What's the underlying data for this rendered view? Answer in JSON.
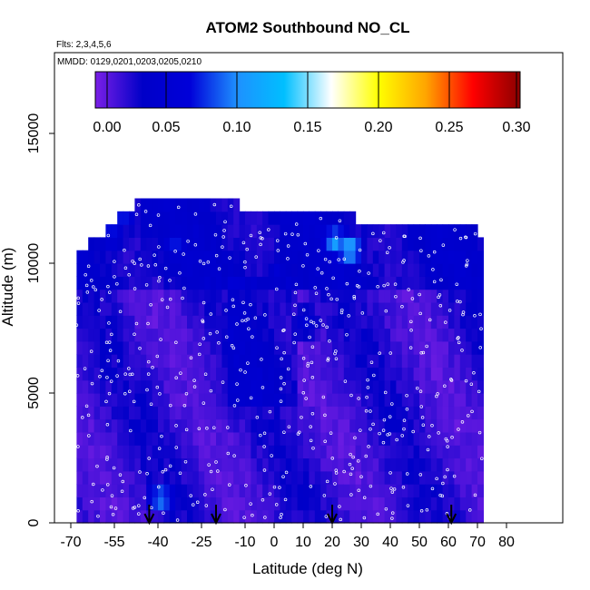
{
  "chart_data": {
    "type": "heatmap",
    "title": "ATOM2 Southbound NO_CL",
    "flights_label": "Flts: 2,3,4,5,6",
    "dates_label": "MMDD: 0129,0201,0203,0205,0210",
    "xlabel": "Latitude (deg N)",
    "ylabel": "Altitude (m)",
    "xlim": [
      -70,
      85
    ],
    "ylim": [
      0,
      17500
    ],
    "x_ticks": [
      -70,
      -55,
      -40,
      -25,
      -10,
      0,
      10,
      20,
      30,
      40,
      50,
      60,
      70,
      80
    ],
    "x_tick_labels": [
      "-70",
      "-55",
      "-40",
      "-25",
      "-10",
      "0",
      "10",
      "20",
      "30",
      "40",
      "50",
      "60",
      "70",
      "80"
    ],
    "y_ticks": [
      0,
      5000,
      10000,
      15000
    ],
    "y_tick_labels": [
      "0",
      "5000",
      "10000",
      "15000"
    ],
    "colorbar": {
      "range": [
        0,
        0.3
      ],
      "ticks": [
        0,
        0.05,
        0.1,
        0.15,
        0.2,
        0.25,
        0.3
      ],
      "tick_labels": [
        "0.00",
        "0.05",
        "0.10",
        "0.15",
        "0.20",
        "0.25",
        "0.30"
      ],
      "colors": [
        "#7a1fe6",
        "#0000c8",
        "#0000d9",
        "#1e90ff",
        "#00bfff",
        "#ffffff",
        "#ffff00",
        "#ffa500",
        "#ff0000",
        "#8b0000"
      ]
    },
    "arrow_latitudes": [
      -43,
      -20,
      20,
      61
    ],
    "grid_lat_range": [
      -68,
      72
    ],
    "grid_alt_step": 500,
    "profile_tops": [
      {
        "lat": -68,
        "alt": 10500
      },
      {
        "lat": -64,
        "alt": 11000
      },
      {
        "lat": -59,
        "alt": 11500
      },
      {
        "lat": -55,
        "alt": 12000
      },
      {
        "lat": -48,
        "alt": 12500
      },
      {
        "lat": -30,
        "alt": 12500
      },
      {
        "lat": -12,
        "alt": 12000
      },
      {
        "lat": 0,
        "alt": 12000
      },
      {
        "lat": 12,
        "alt": 12000
      },
      {
        "lat": 24,
        "alt": 12000
      },
      {
        "lat": 27,
        "alt": 11500
      },
      {
        "lat": 70,
        "alt": 11000
      },
      {
        "lat": 72,
        "alt": 10500
      }
    ],
    "high_features": [
      {
        "lat": -53,
        "alt": 11900,
        "value": 0.11
      },
      {
        "lat": -57,
        "alt": 10900,
        "value": 0.08
      },
      {
        "lat": -35,
        "alt": 10500,
        "value": 0.08
      },
      {
        "lat": 20,
        "alt": 10600,
        "value": 0.12
      },
      {
        "lat": 25,
        "alt": 10300,
        "value": 0.13
      },
      {
        "lat": -40,
        "alt": 700,
        "value": 0.11
      },
      {
        "lat": 10,
        "alt": 7500,
        "value": 0.06
      },
      {
        "lat": 0,
        "alt": 9500,
        "value": 0.055
      }
    ]
  }
}
